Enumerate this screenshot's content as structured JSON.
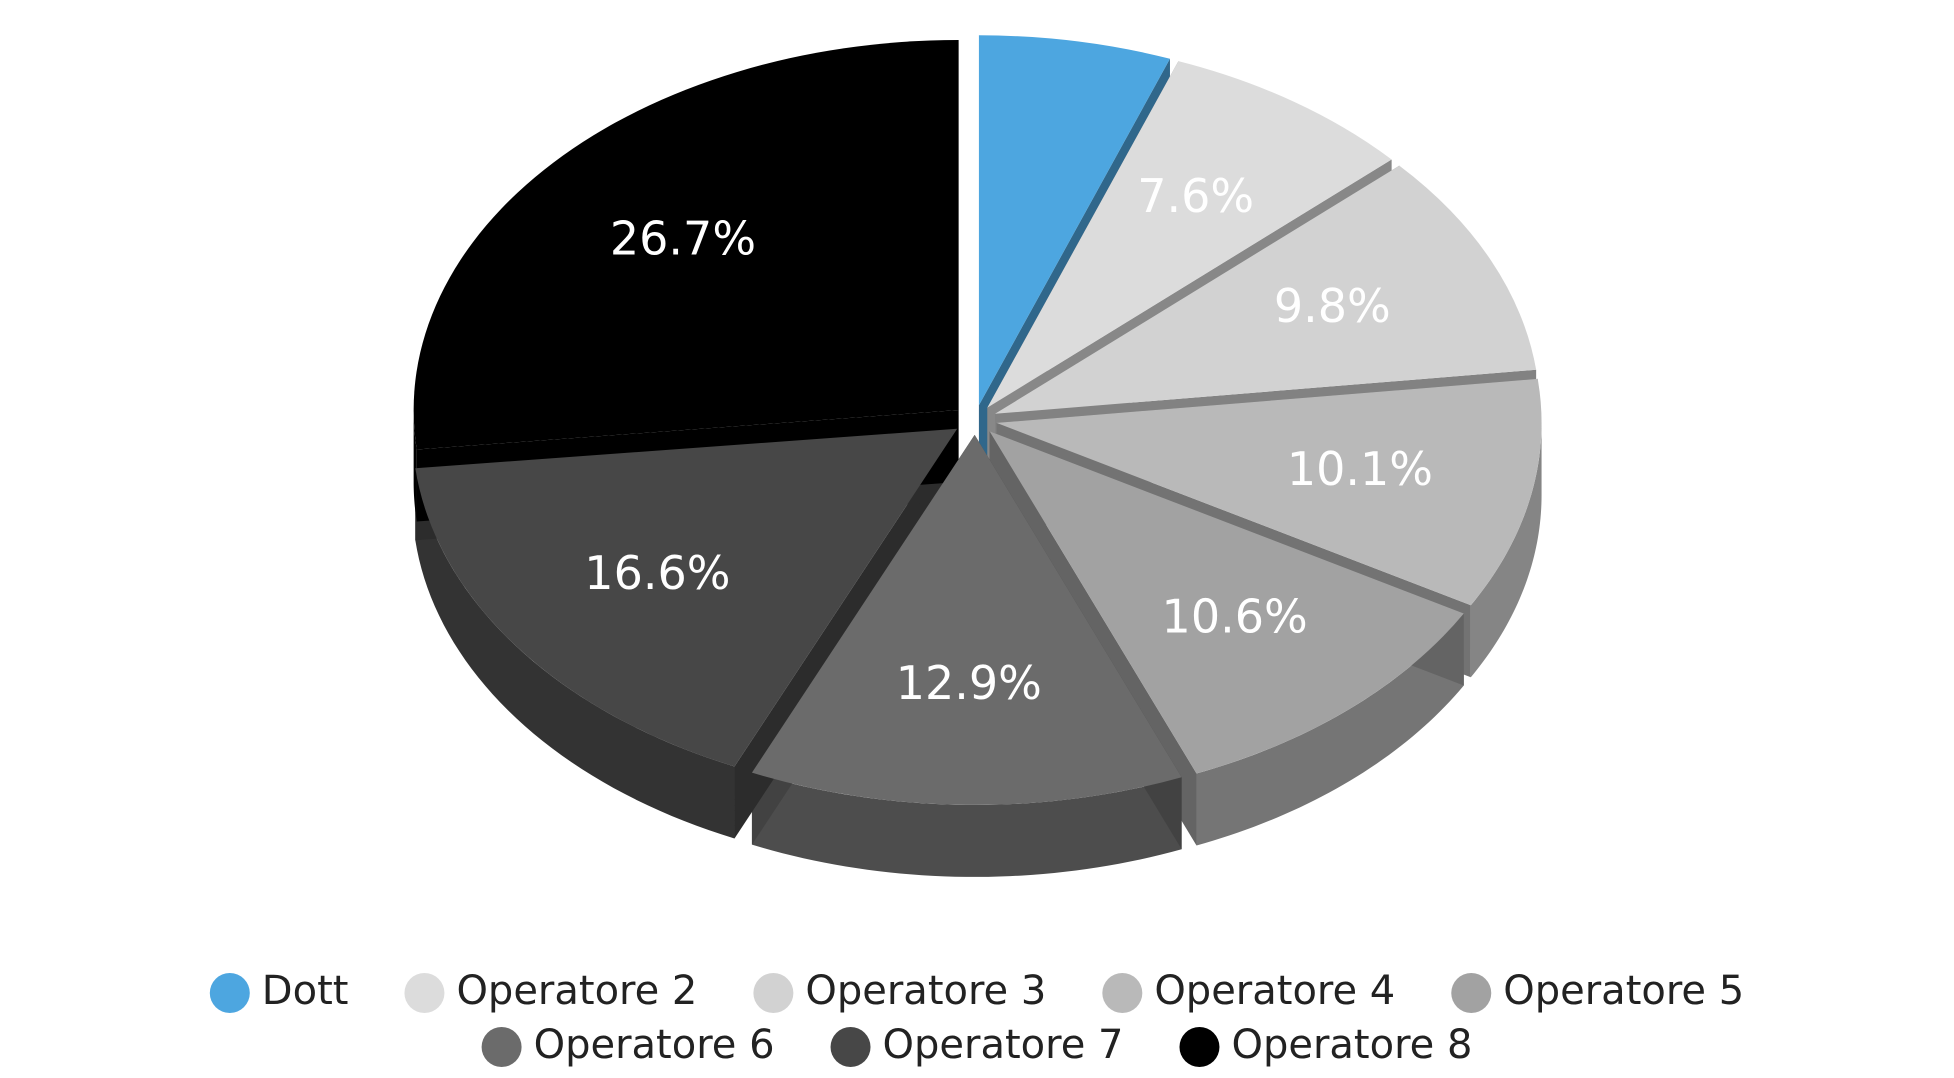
{
  "chart_data": {
    "type": "pie3d",
    "categories": [
      "Dott",
      "Operatore 2",
      "Operatore 3",
      "Operatore 4",
      "Operatore 5",
      "Operatore 6",
      "Operatore 7",
      "Operatore 8"
    ],
    "values": [
      5.7,
      7.6,
      9.8,
      10.1,
      10.6,
      12.9,
      16.6,
      26.7
    ],
    "value_labels": [
      null,
      "7.6%",
      "9.8%",
      "10.1%",
      "10.6%",
      "12.9%",
      "16.6%",
      "26.7%"
    ],
    "colors": [
      "#4da6e0",
      "#dcdcdc",
      "#d2d2d2",
      "#b9b9b9",
      "#a2a2a2",
      "#6b6b6b",
      "#474747",
      "#000000"
    ],
    "legend": "bottom"
  }
}
